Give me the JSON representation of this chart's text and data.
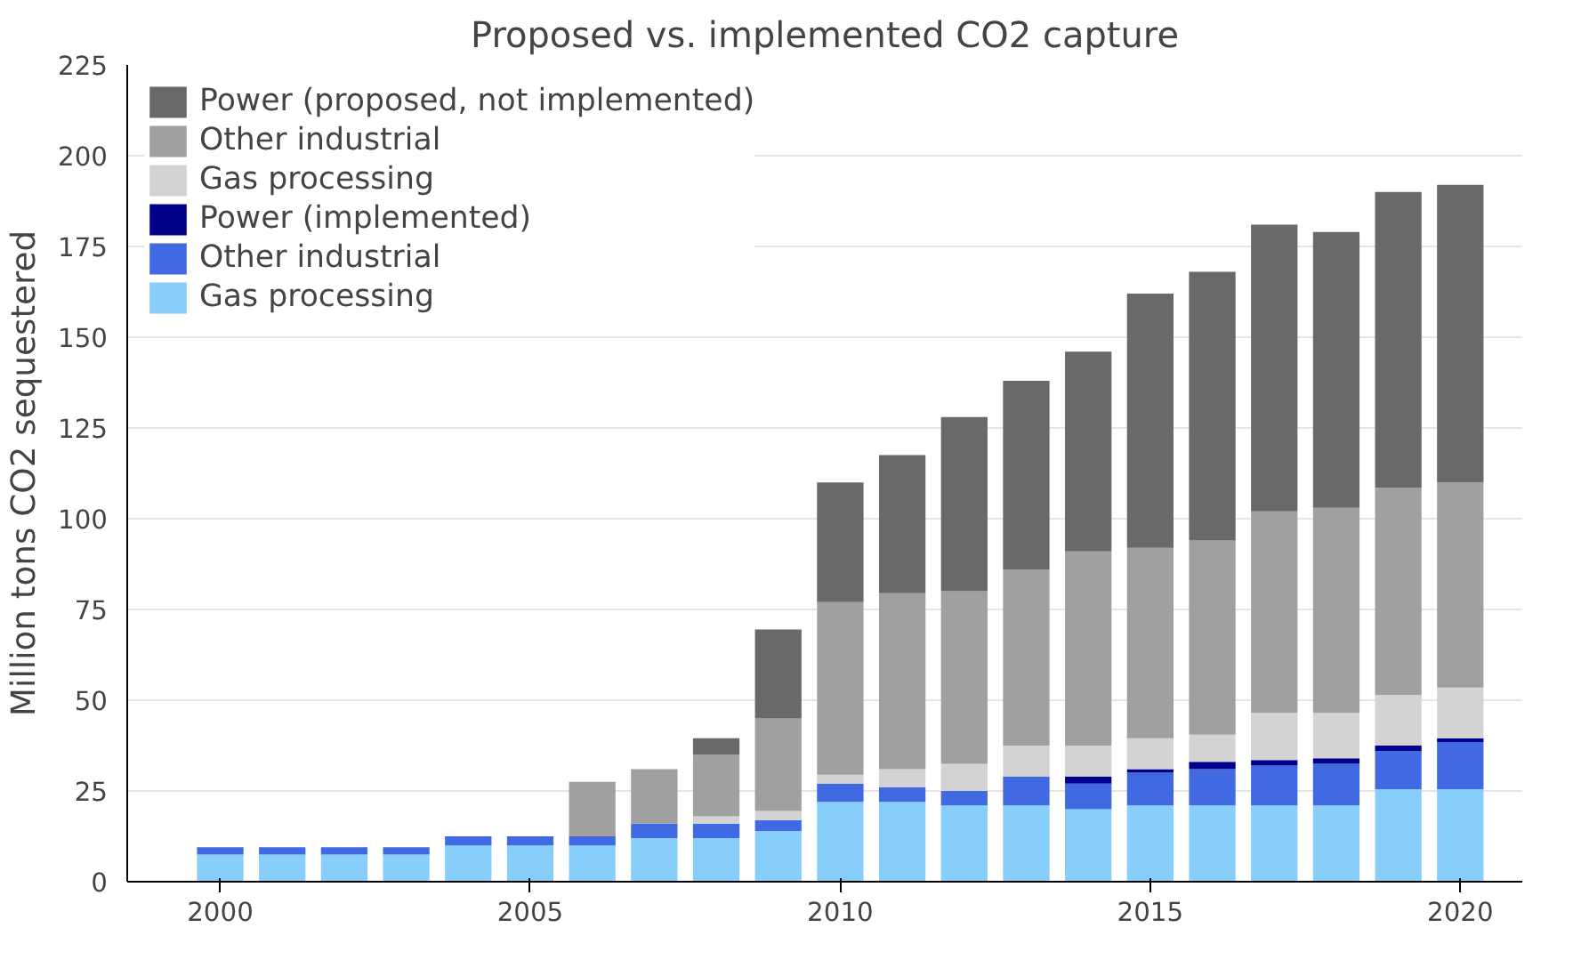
{
  "chart_data": {
    "type": "bar",
    "stacked": true,
    "title": "Proposed vs. implemented CO2 capture",
    "ylabel": "Million tons CO2 sequestered",
    "x": [
      2000,
      2001,
      2002,
      2003,
      2004,
      2005,
      2006,
      2007,
      2008,
      2009,
      2010,
      2011,
      2012,
      2013,
      2014,
      2015,
      2016,
      2017,
      2018,
      2019,
      2020
    ],
    "xlim": [
      1998.5,
      2021
    ],
    "xticks": [
      2000,
      2005,
      2010,
      2015,
      2020
    ],
    "ylim": [
      0,
      225
    ],
    "yticks": [
      0,
      25,
      50,
      75,
      100,
      125,
      150,
      175,
      200,
      225
    ],
    "grid": "y",
    "legend": "top left",
    "series": [
      {
        "name": "Gas processing",
        "color": "#87cefa",
        "values": [
          7.5,
          7.5,
          7.5,
          7.5,
          10,
          10,
          10,
          12,
          12,
          14,
          22,
          22,
          21,
          21,
          20,
          21,
          21,
          21,
          21,
          25.5,
          25.5
        ]
      },
      {
        "name": "Other industrial",
        "color": "#4169e1",
        "values": [
          2,
          2,
          2,
          2,
          2.5,
          2.5,
          2.5,
          4,
          4,
          3,
          5,
          4,
          4,
          8,
          7,
          9,
          10,
          11,
          11.5,
          10.5,
          13
        ]
      },
      {
        "name": "Power (implemented)",
        "color": "#00008b",
        "values": [
          0,
          0,
          0,
          0,
          0,
          0,
          0,
          0,
          0,
          0,
          0,
          0,
          0,
          0,
          2,
          1,
          2,
          1.5,
          1.5,
          1.5,
          1
        ]
      },
      {
        "name": "Gas processing",
        "color": "#d3d3d3",
        "values": [
          0,
          0,
          0,
          0,
          0,
          0,
          0,
          0,
          2,
          2.5,
          2.5,
          5,
          7.5,
          8.5,
          8.5,
          8.5,
          7.5,
          13,
          12.5,
          14,
          14
        ]
      },
      {
        "name": "Other industrial",
        "color": "#a0a0a0",
        "values": [
          0,
          0,
          0,
          0,
          0,
          0,
          15,
          15,
          17,
          25.5,
          47.5,
          48.5,
          47.5,
          48.5,
          53.5,
          52.5,
          53.5,
          55.5,
          56.5,
          57,
          56.5
        ]
      },
      {
        "name": "Power (proposed, not implemented)",
        "color": "#696969",
        "values": [
          0,
          0,
          0,
          0,
          0,
          0,
          0,
          0,
          4.5,
          24.5,
          33,
          38,
          48,
          52,
          55,
          70,
          74,
          79,
          76,
          81.5,
          82
        ]
      }
    ]
  }
}
